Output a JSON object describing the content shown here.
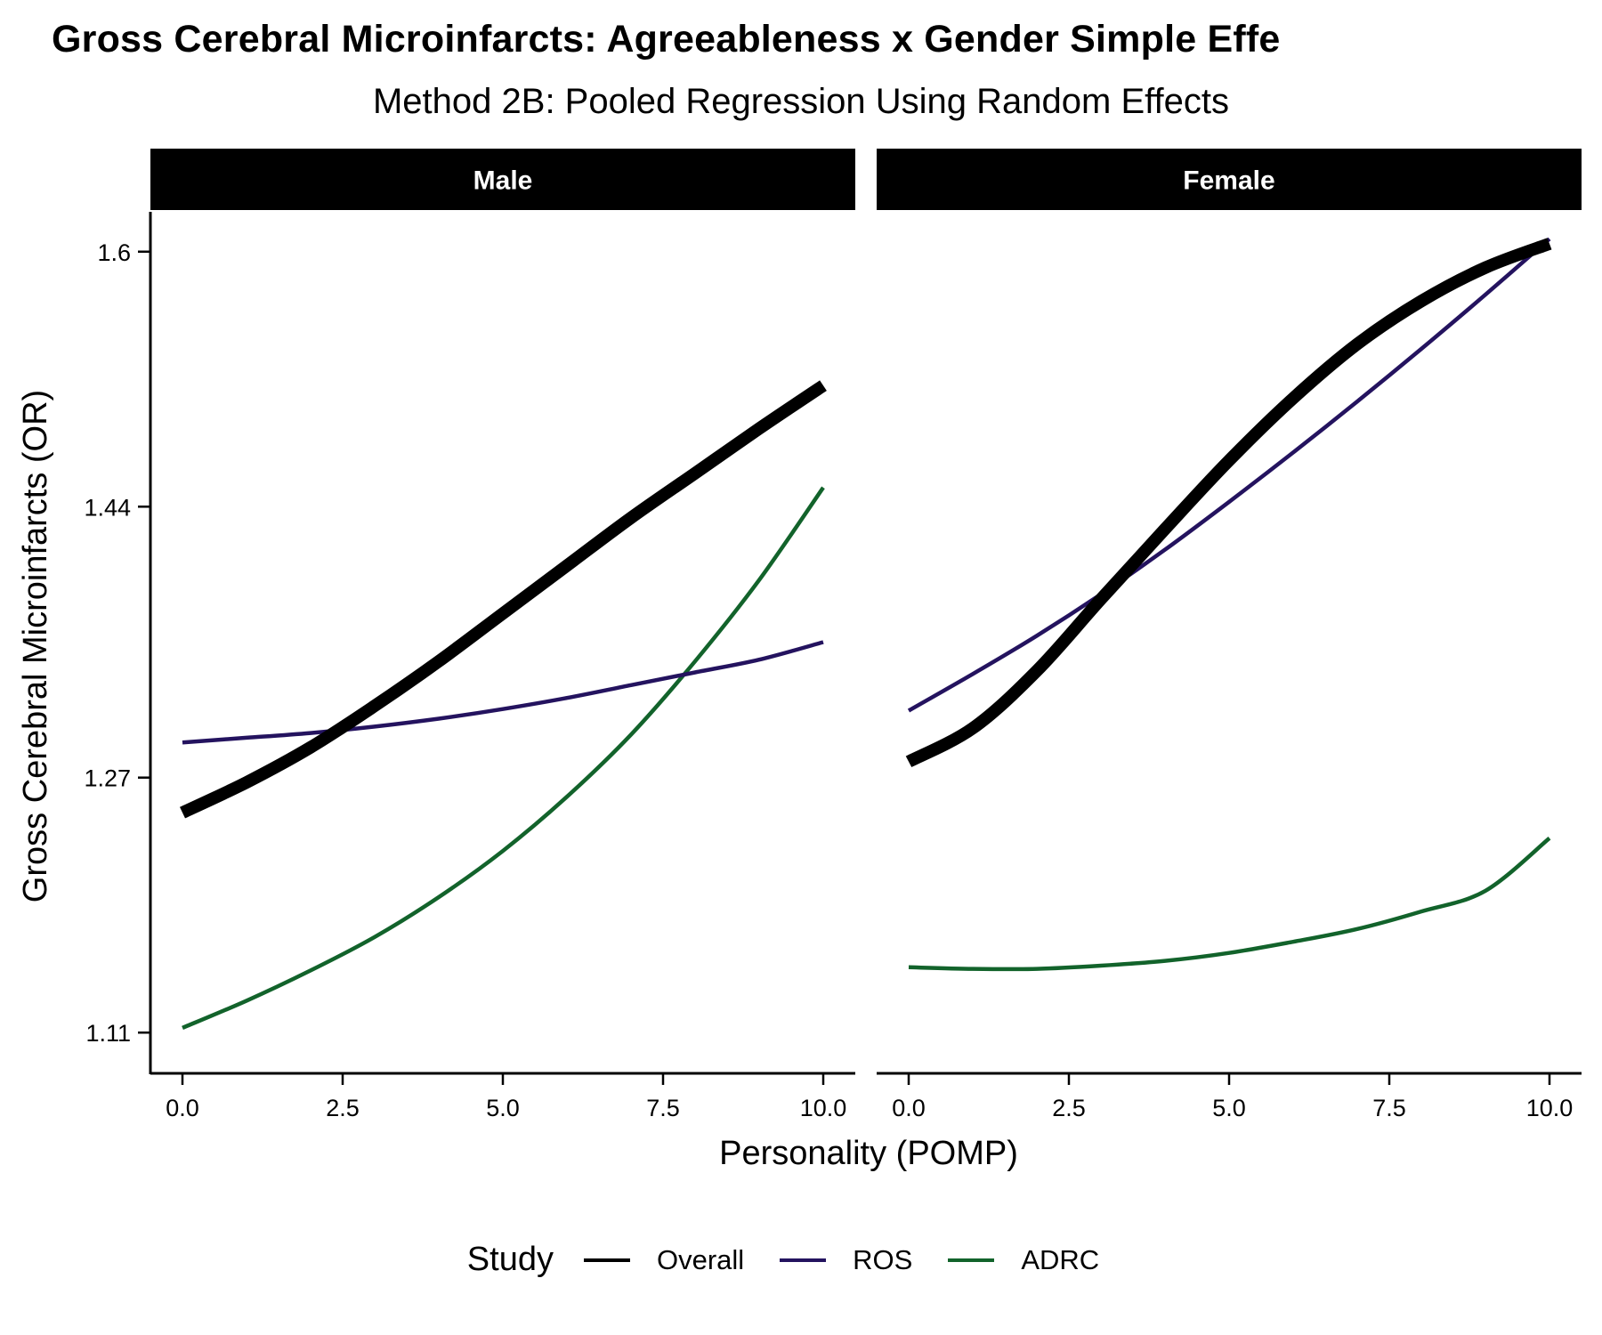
{
  "chart_data": {
    "type": "line",
    "title": "Gross Cerebral Microinfarcts: Agreeableness x Gender Simple Effe",
    "subtitle": "Method 2B: Pooled Regression Using Random Effects",
    "xlabel": "Personality (POMP)",
    "ylabel": "Gross Cerebral Microinfarcts (OR)",
    "xlim": [
      -0.5,
      10.5
    ],
    "ylim": [
      1.085,
      1.625
    ],
    "x_ticks": [
      0,
      2.5,
      5,
      7.5,
      10
    ],
    "x_tick_labels": [
      "0.0",
      "2.5",
      "5.0",
      "7.5",
      "10.0"
    ],
    "y_ticks": [
      1.11,
      1.27,
      1.44,
      1.6
    ],
    "y_tick_labels": [
      "1.11",
      "1.27",
      "1.44",
      "1.6"
    ],
    "grid": false,
    "legend": {
      "title": "Study",
      "position": "bottom"
    },
    "series_styles": [
      {
        "name": "Overall",
        "color": "#000000",
        "width": "thick"
      },
      {
        "name": "ROS",
        "color": "#24135f",
        "width": "thin"
      },
      {
        "name": "ADRC",
        "color": "#12632b",
        "width": "thin"
      }
    ],
    "x": [
      0,
      1,
      2,
      3,
      4,
      5,
      6,
      7,
      8,
      9,
      10
    ],
    "panels": [
      {
        "name": "Male",
        "series": [
          {
            "name": "Overall",
            "values": [
              1.248,
              1.267,
              1.289,
              1.315,
              1.343,
              1.373,
              1.403,
              1.433,
              1.461,
              1.489,
              1.516
            ]
          },
          {
            "name": "ROS",
            "values": [
              1.292,
              1.295,
              1.298,
              1.302,
              1.307,
              1.313,
              1.32,
              1.328,
              1.336,
              1.344,
              1.355
            ]
          },
          {
            "name": "ADRC",
            "values": [
              1.113,
              1.13,
              1.149,
              1.17,
              1.195,
              1.224,
              1.258,
              1.297,
              1.343,
              1.394,
              1.452
            ]
          }
        ]
      },
      {
        "name": "Female",
        "series": [
          {
            "name": "Overall",
            "values": [
              1.28,
              1.301,
              1.337,
              1.382,
              1.426,
              1.469,
              1.508,
              1.542,
              1.569,
              1.59,
              1.605
            ]
          },
          {
            "name": "ROS",
            "values": [
              1.312,
              1.335,
              1.359,
              1.385,
              1.413,
              1.443,
              1.474,
              1.506,
              1.539,
              1.573,
              1.608
            ]
          },
          {
            "name": "ADRC",
            "values": [
              1.151,
              1.15,
              1.15,
              1.152,
              1.155,
              1.16,
              1.167,
              1.175,
              1.186,
              1.199,
              1.232
            ]
          }
        ]
      }
    ]
  }
}
